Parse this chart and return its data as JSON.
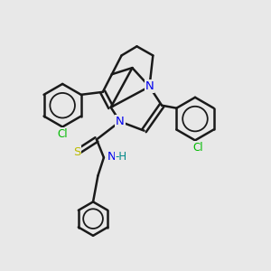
{
  "bg_color": "#e8e8e8",
  "bond_color": "#1a1a1a",
  "N_color": "#0000ee",
  "S_color": "#bbbb00",
  "Cl_color": "#00bb00",
  "H_color": "#008888",
  "line_width": 1.8,
  "xlim": [
    0,
    10
  ],
  "ylim": [
    0,
    10
  ]
}
